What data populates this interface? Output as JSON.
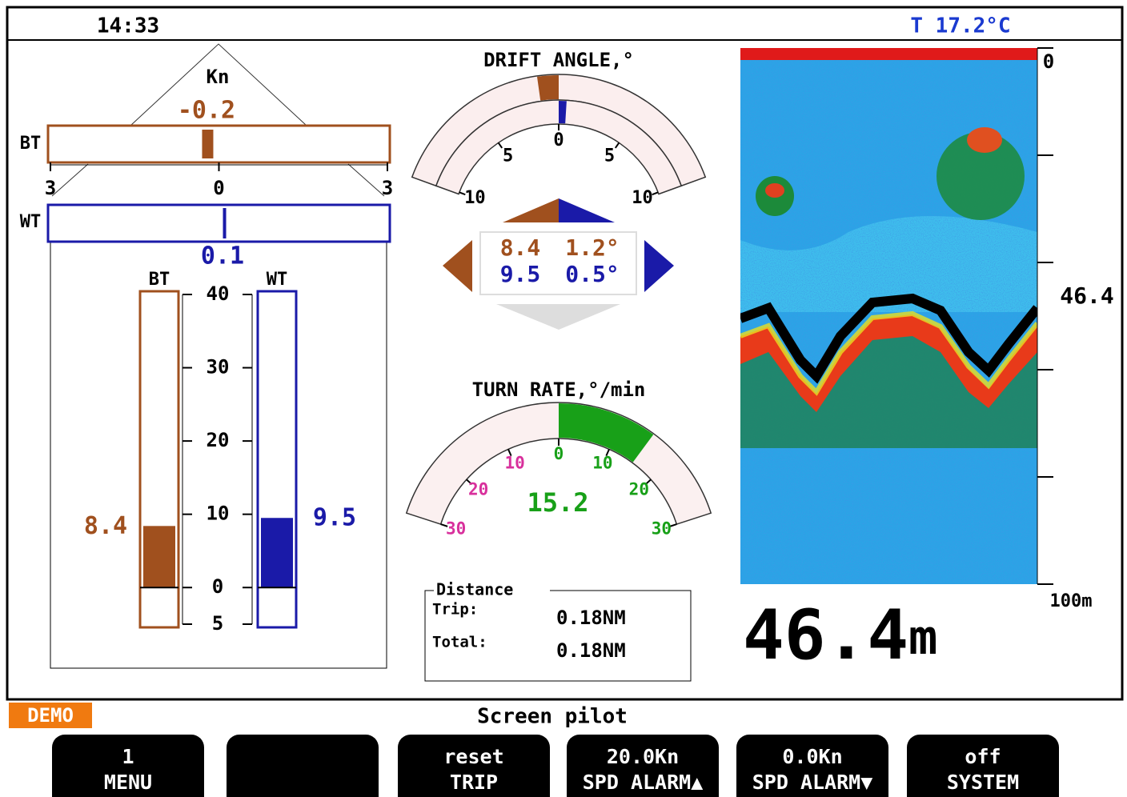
{
  "status_bar": {
    "time": "14:33",
    "water_temperature": "T 17.2°C"
  },
  "speed_log": {
    "unit": "Kn",
    "bottom_track": {
      "label": "BT",
      "lateral": -0.2,
      "longitudinal": 8.4,
      "color": "#a0501e"
    },
    "water_track": {
      "label": "WT",
      "lateral": 0.1,
      "longitudinal": 9.5,
      "color": "#1a1aa8"
    },
    "lateral_scale": {
      "xlim": [
        -3,
        3
      ],
      "xticks": [
        {
          "value": -3,
          "label": "3"
        },
        0,
        {
          "value": 3,
          "label": "3"
        }
      ]
    },
    "longitudinal_scale": {
      "ylim": [
        -5,
        40
      ],
      "yticks": [
        {
          "value": -5,
          "label": "5"
        },
        0,
        10,
        20,
        30,
        40
      ]
    }
  },
  "drift_angle": {
    "title": "DRIFT ANGLE,°",
    "ticks": [
      {
        "value": -10,
        "label": "10"
      },
      {
        "value": -5,
        "label": "5"
      },
      0,
      {
        "value": 5,
        "label": "5"
      },
      {
        "value": 10,
        "label": "10"
      }
    ],
    "readout": {
      "bt_speed": "8.4",
      "bt_angle": "1.2°",
      "wt_speed": "9.5",
      "wt_angle": "0.5°"
    }
  },
  "turn_rate": {
    "title": "TURN RATE,°/min",
    "value": 15.2,
    "range": [
      -30,
      30
    ],
    "ticks": [
      {
        "value": -30,
        "label": "30"
      },
      {
        "value": -20,
        "label": "20"
      },
      {
        "value": -10,
        "label": "10"
      },
      0,
      10,
      20,
      30
    ],
    "port_color": "#d8309c",
    "starboard_color": "#18a018"
  },
  "distance": {
    "title": "Distance",
    "trip_label": "Trip:",
    "trip_value": "0.18NM",
    "total_label": "Total:",
    "total_value": "0.18NM"
  },
  "echo_sounder": {
    "depth": 46.4,
    "unit": "m",
    "ylim": [
      0,
      100
    ],
    "yticks": [
      0,
      20,
      40,
      60,
      80,
      100
    ],
    "top_label": "0",
    "bottom_label": "100m"
  },
  "footer": {
    "mode": "DEMO",
    "screen_title": "Screen pilot",
    "softkeys": [
      {
        "value": "1",
        "label": "MENU"
      },
      {
        "value": "reset",
        "label": "TRIP"
      },
      {
        "value": "20.0Kn",
        "label": "SPD ALARM▲"
      },
      {
        "value": "0.0Kn",
        "label": "SPD ALARM▼"
      },
      {
        "value": "off",
        "label": "SYSTEM"
      }
    ]
  }
}
